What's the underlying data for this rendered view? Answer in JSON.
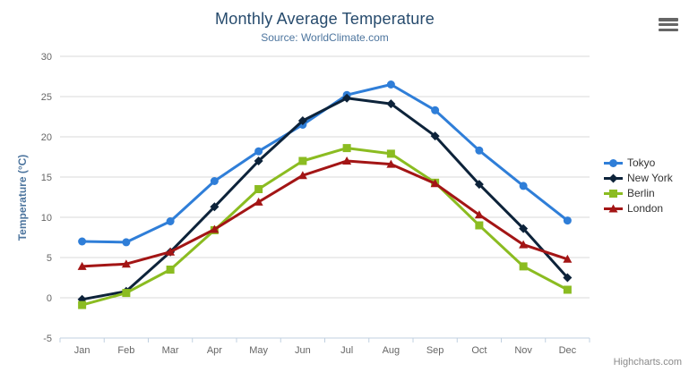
{
  "header": {
    "title": "Monthly Average Temperature",
    "subtitle": "Source: WorldClimate.com"
  },
  "credits": {
    "label": "Highcharts.com"
  },
  "menu": {
    "icon": "hamburger-icon"
  },
  "colors": {
    "title": "#274b6d",
    "subtitle": "#4d759e",
    "axis_title": "#4d759e",
    "tick_label": "#666666",
    "grid_line": "#d8d8d8",
    "axis_line": "#c0d0e0",
    "legend_text": "#333333",
    "background": "#ffffff"
  },
  "chart_data": {
    "type": "line",
    "title": "Monthly Average Temperature",
    "subtitle": "Source: WorldClimate.com",
    "xlabel": "",
    "ylabel": "Temperature (°C)",
    "ylim": [
      -5,
      30
    ],
    "ytick_step": 5,
    "yticks": [
      -5,
      0,
      5,
      10,
      15,
      20,
      25,
      30
    ],
    "grid": true,
    "legend_position": "right",
    "categories": [
      "Jan",
      "Feb",
      "Mar",
      "Apr",
      "May",
      "Jun",
      "Jul",
      "Aug",
      "Sep",
      "Oct",
      "Nov",
      "Dec"
    ],
    "series": [
      {
        "name": "Tokyo",
        "color": "#2f7ed8",
        "marker": "circle",
        "values": [
          7.0,
          6.9,
          9.5,
          14.5,
          18.2,
          21.5,
          25.2,
          26.5,
          23.3,
          18.3,
          13.9,
          9.6
        ]
      },
      {
        "name": "New York",
        "color": "#0d233a",
        "marker": "diamond",
        "values": [
          -0.2,
          0.8,
          5.7,
          11.3,
          17.0,
          22.0,
          24.8,
          24.1,
          20.1,
          14.1,
          8.6,
          2.5
        ]
      },
      {
        "name": "Berlin",
        "color": "#8bbc21",
        "marker": "square",
        "values": [
          -0.9,
          0.6,
          3.5,
          8.4,
          13.5,
          17.0,
          18.6,
          17.9,
          14.3,
          9.0,
          3.9,
          1.0
        ]
      },
      {
        "name": "London",
        "color": "#a31515",
        "marker": "triangle",
        "values": [
          3.9,
          4.2,
          5.7,
          8.5,
          11.9,
          15.2,
          17.0,
          16.6,
          14.2,
          10.3,
          6.6,
          4.8
        ]
      }
    ]
  }
}
